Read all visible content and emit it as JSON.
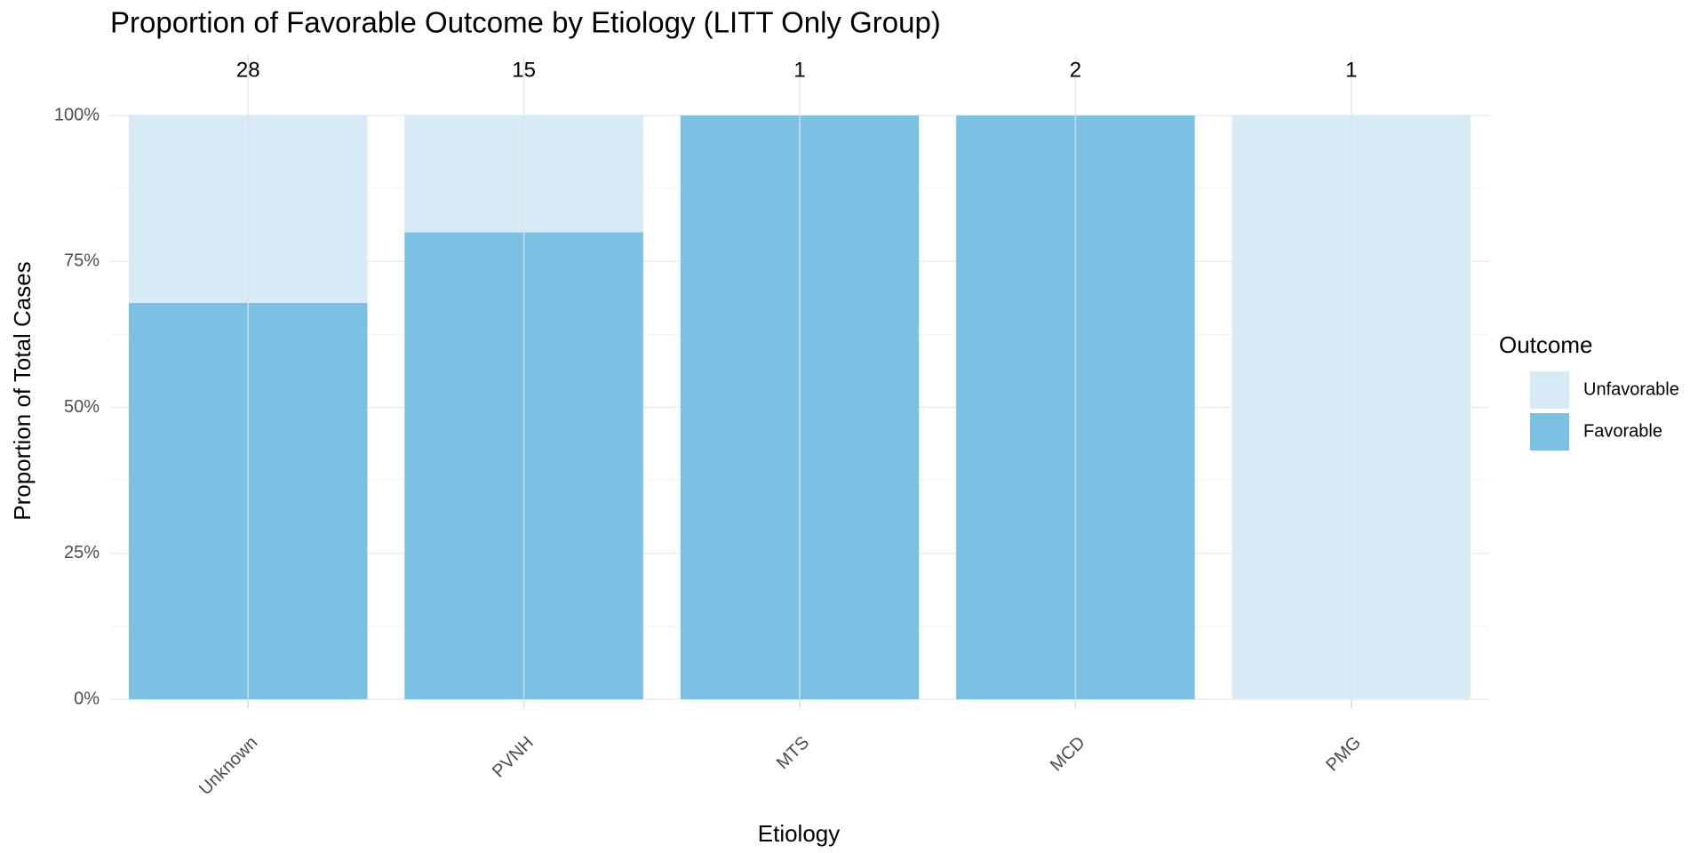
{
  "chart_data": {
    "type": "bar",
    "stacked": true,
    "title": "Proportion of Favorable Outcome by Etiology (LITT Only Group)",
    "x_label": "Etiology",
    "y_label": "Proportion of Total Cases",
    "legend_title": "Outcome",
    "categories": [
      "Unknown",
      "PVNH",
      "MTS",
      "MCD",
      "PMG"
    ],
    "series": [
      {
        "name": "Unfavorable",
        "color": "#d6ebf5",
        "values": [
          32.1,
          20,
          0,
          0,
          100
        ]
      },
      {
        "name": "Favorable",
        "color": "#7ac1e3",
        "values": [
          67.9,
          80,
          100,
          100,
          0
        ]
      }
    ],
    "counts": [
      28,
      15,
      1,
      2,
      1
    ],
    "ylim": [
      0,
      100
    ],
    "yticks": [
      {
        "value": 0,
        "label": "0%"
      },
      {
        "value": 25,
        "label": "25%"
      },
      {
        "value": 50,
        "label": "50%"
      },
      {
        "value": 75,
        "label": "75%"
      },
      {
        "value": 100,
        "label": "100%"
      }
    ],
    "minor_yticks": [
      12.5,
      37.5,
      62.5,
      87.5
    ],
    "grid": true
  }
}
